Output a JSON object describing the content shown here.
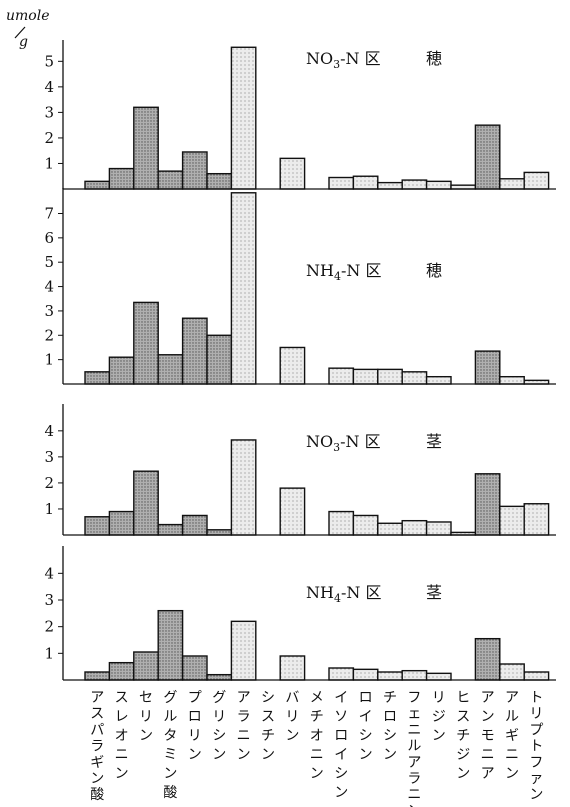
{
  "unit_top": "umole",
  "unit_bottom": "g",
  "chart_data": [
    {
      "type": "bar",
      "title": "NO3-N 区 穂",
      "ylim": [
        0,
        5.6
      ],
      "yticks": [
        1,
        2,
        3,
        4,
        5
      ],
      "categories": [
        "アスパラギン酸",
        "スレオニン",
        "セリン",
        "グルタミン酸",
        "プロリン",
        "グリシン",
        "アラニン",
        "シスチン",
        "バリン",
        "メチオニン",
        "イソロイシン",
        "ロイシン",
        "チロシン",
        "フェニルアラニン",
        "リジン",
        "ヒスチジン",
        "アンモニア",
        "アルギニン",
        "トリプトファン"
      ],
      "values": [
        0.3,
        0.8,
        3.2,
        0.7,
        1.45,
        0.6,
        5.55,
        0,
        1.2,
        0,
        0.45,
        0.5,
        0.25,
        0.35,
        0.3,
        0.15,
        2.5,
        0.4,
        0.65
      ]
    },
    {
      "type": "bar",
      "title": "NH4-N 区 穂",
      "ylim": [
        0,
        7.8
      ],
      "yticks": [
        1,
        2,
        3,
        4,
        5,
        6,
        7
      ],
      "categories": [
        "アスパラギン酸",
        "スレオニン",
        "セリン",
        "グルタミン酸",
        "プロリン",
        "グリシン",
        "アラニン",
        "シスチン",
        "バリン",
        "メチオニン",
        "イソロイシン",
        "ロイシン",
        "チロシン",
        "フェニルアラニン",
        "リジン",
        "ヒスチジン",
        "アンモニア",
        "アルギニン",
        "トリプトファン"
      ],
      "values": [
        0.5,
        1.1,
        3.35,
        1.2,
        2.7,
        2.0,
        7.85,
        0,
        1.5,
        0,
        0.65,
        0.6,
        0.6,
        0.5,
        0.3,
        0,
        1.35,
        0.3,
        0.15
      ]
    },
    {
      "type": "bar",
      "title": "NO3-N 区 茎",
      "ylim": [
        0,
        4.8
      ],
      "yticks": [
        1,
        2,
        3,
        4
      ],
      "categories": [
        "アスパラギン酸",
        "スレオニン",
        "セリン",
        "グルタミン酸",
        "プロリン",
        "グリシン",
        "アラニン",
        "シスチン",
        "バリン",
        "メチオニン",
        "イソロイシン",
        "ロイシン",
        "チロシン",
        "フェニルアラニン",
        "リジン",
        "ヒスチジン",
        "アンモニア",
        "アルギニン",
        "トリプトファン"
      ],
      "values": [
        0.7,
        0.9,
        2.45,
        0.4,
        0.75,
        0.2,
        3.65,
        0,
        1.8,
        0,
        0.9,
        0.75,
        0.45,
        0.55,
        0.5,
        0.1,
        2.35,
        1.1,
        1.2
      ]
    },
    {
      "type": "bar",
      "title": "NH4-N 区 茎",
      "ylim": [
        0,
        4.8
      ],
      "yticks": [
        1,
        2,
        3,
        4
      ],
      "categories": [
        "アスパラギン酸",
        "スレオニン",
        "セリン",
        "グルタミン酸",
        "プロリン",
        "グリシン",
        "アラニン",
        "シスチン",
        "バリン",
        "メチオニン",
        "イソロイシン",
        "ロイシン",
        "チロシン",
        "フェニルアラニン",
        "リジン",
        "ヒスチジン",
        "アンモニア",
        "アルギニン",
        "トリプトファン"
      ],
      "values": [
        0.3,
        0.65,
        1.05,
        2.6,
        0.9,
        0.2,
        2.2,
        0,
        0.9,
        0,
        0.45,
        0.4,
        0.3,
        0.35,
        0.25,
        0,
        1.55,
        0.6,
        0.3
      ]
    }
  ],
  "panels": [
    {
      "title_main": "NO",
      "title_sub": "3",
      "title_rest": "-N 区",
      "title_part": "穂"
    },
    {
      "title_main": "NH",
      "title_sub": "4",
      "title_rest": "-N 区",
      "title_part": "穂"
    },
    {
      "title_main": "NO",
      "title_sub": "3",
      "title_rest": "-N 区",
      "title_part": "茎"
    },
    {
      "title_main": "NH",
      "title_sub": "4",
      "title_rest": "-N 区",
      "title_part": "茎"
    }
  ],
  "colors": {
    "dark_fill": "#a3a3a3",
    "light_fill": "#e0e0e0",
    "stroke": "#111111"
  },
  "bar_shading": [
    "dark",
    "dark",
    "dark",
    "dark",
    "dark",
    "dark",
    "light",
    "none",
    "light",
    "none",
    "light",
    "light",
    "light",
    "light",
    "light",
    "light",
    "dark",
    "light",
    "light"
  ]
}
